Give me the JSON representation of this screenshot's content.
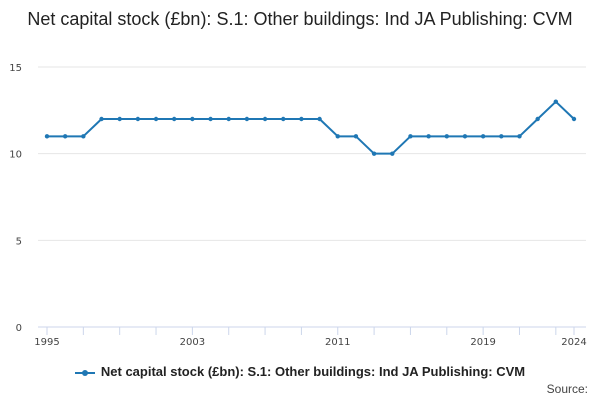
{
  "title": "Net capital stock (£bn): S.1: Other buildings: Ind JA Publishing: CVM",
  "source_label": "Source:",
  "colors": {
    "series": "#1f77b4",
    "grid": "#e6e6e6",
    "axis": "#ccd6eb"
  },
  "chart_data": {
    "type": "line",
    "x": [
      1995,
      1996,
      1997,
      1998,
      1999,
      2000,
      2001,
      2002,
      2003,
      2004,
      2005,
      2006,
      2007,
      2008,
      2009,
      2010,
      2011,
      2012,
      2013,
      2014,
      2015,
      2016,
      2017,
      2018,
      2019,
      2020,
      2021,
      2022,
      2023,
      2024
    ],
    "series": [
      {
        "name": "Net capital stock (£bn): S.1: Other buildings: Ind JA Publishing: CVM",
        "values": [
          11,
          11,
          11,
          12,
          12,
          12,
          12,
          12,
          12,
          12,
          12,
          12,
          12,
          12,
          12,
          12,
          11,
          11,
          10,
          10,
          11,
          11,
          11,
          11,
          11,
          11,
          11,
          12,
          13,
          12
        ]
      }
    ],
    "x_ticks": [
      "1995",
      "2003",
      "2011",
      "2019",
      "2024"
    ],
    "y_ticks": [
      "0",
      "5",
      "10",
      "15"
    ],
    "xlim": [
      1995,
      2024
    ],
    "ylim": [
      0,
      15
    ],
    "grid": true,
    "legend_position": "bottom"
  }
}
